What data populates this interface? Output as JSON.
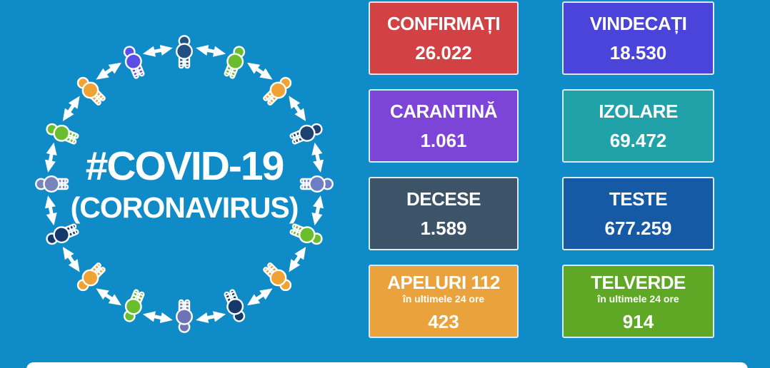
{
  "title": {
    "line1": "#COVID-19",
    "line2": "(CORONAVIRUS)"
  },
  "colors": {
    "background": "#0f8cc7",
    "card_border": "#d9ecf5",
    "text": "#ffffff",
    "arrow": "#ffffff",
    "footer_bar": "#ffffff"
  },
  "stats": [
    {
      "id": "confirmati",
      "label": "CONFIRMAȚI",
      "value": "26.022",
      "color": "#d24244"
    },
    {
      "id": "vindecati",
      "label": "VINDECAȚI",
      "value": "18.530",
      "color": "#4a44da"
    },
    {
      "id": "carantina",
      "label": "CARANTINĂ",
      "value": "1.061",
      "color": "#7d44d8"
    },
    {
      "id": "izolare",
      "label": "IZOLARE",
      "value": "69.472",
      "color": "#21a2a8"
    },
    {
      "id": "decese",
      "label": "DECESE",
      "value": "1.589",
      "color": "#3d5468"
    },
    {
      "id": "teste",
      "label": "TESTE",
      "value": "677.259",
      "color": "#1659a5"
    },
    {
      "id": "apeluri112",
      "label": "APELURI 112",
      "sublabel": "în ultimele 24 ore",
      "value": "423",
      "color": "#eaa33c"
    },
    {
      "id": "telverde",
      "label": "TELVERDE",
      "sublabel": "în ultimele 24 ore",
      "value": "914",
      "color": "#5fa826"
    }
  ],
  "ring": {
    "person_colors": [
      "#225082",
      "#6abe2e",
      "#f0a232",
      "#1d4271",
      "#6e7ec4",
      "#6abe2e",
      "#f0a232",
      "#16396b",
      "#6d74b4",
      "#6abe2e",
      "#f0a232",
      "#16396b",
      "#7584ba",
      "#6abe2e",
      "#f0a232",
      "#5a4ee6"
    ],
    "arrow_color": "#ffffff"
  },
  "chart_data": {
    "type": "table",
    "title": "#COVID-19 (CORONAVIRUS)",
    "categories": [
      "CONFIRMAȚI",
      "VINDECAȚI",
      "CARANTINĂ",
      "IZOLARE",
      "DECESE",
      "TESTE",
      "APELURI 112 (în ultimele 24 ore)",
      "TELVERDE (în ultimele 24 ore)"
    ],
    "values": [
      26022,
      18530,
      1061,
      69472,
      1589,
      677259,
      423,
      914
    ]
  }
}
